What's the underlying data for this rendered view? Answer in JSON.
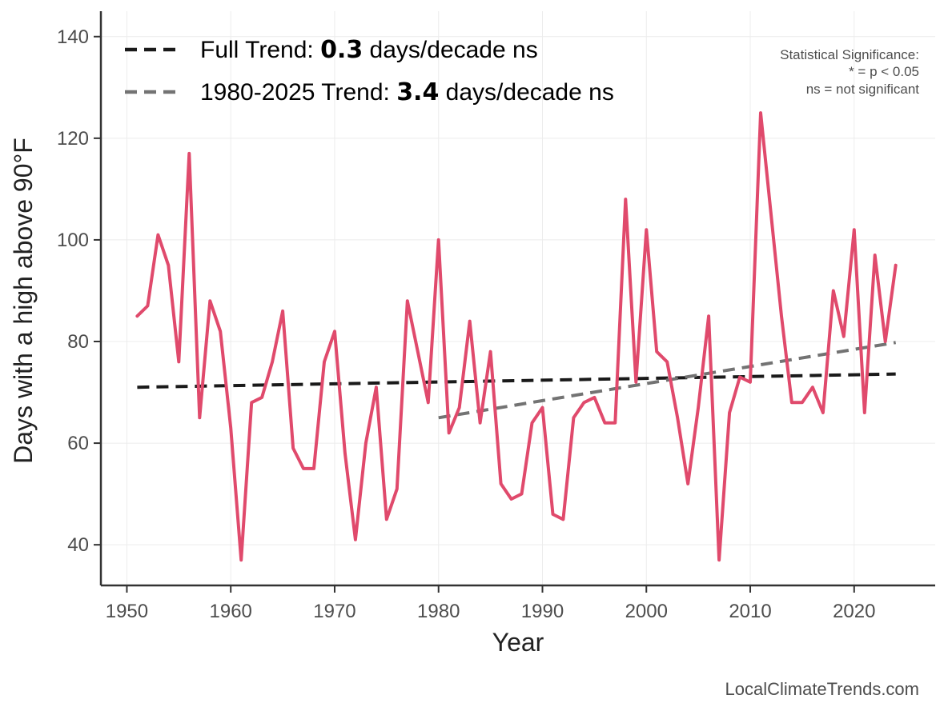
{
  "chart_data": {
    "type": "line",
    "xlabel": "Year",
    "ylabel": "Days with a high above 90°F",
    "xlim": [
      1947.5,
      2027.8
    ],
    "ylim": [
      32,
      145
    ],
    "xticks": [
      1950,
      1960,
      1970,
      1980,
      1990,
      2000,
      2010,
      2020
    ],
    "yticks": [
      40,
      60,
      80,
      100,
      120,
      140
    ],
    "grid": true,
    "series": [
      {
        "name": "Days with a high above 90°F",
        "color": "#e04a6c",
        "x": [
          1951,
          1952,
          1953,
          1954,
          1955,
          1956,
          1957,
          1958,
          1959,
          1960,
          1961,
          1962,
          1963,
          1964,
          1965,
          1966,
          1967,
          1968,
          1969,
          1970,
          1971,
          1972,
          1973,
          1974,
          1975,
          1976,
          1977,
          1978,
          1979,
          1980,
          1981,
          1982,
          1983,
          1984,
          1985,
          1986,
          1987,
          1988,
          1989,
          1990,
          1991,
          1992,
          1993,
          1994,
          1995,
          1996,
          1997,
          1998,
          1999,
          2000,
          2001,
          2002,
          2003,
          2004,
          2005,
          2006,
          2007,
          2008,
          2009,
          2010,
          2011,
          2012,
          2013,
          2014,
          2015,
          2016,
          2017,
          2018,
          2019,
          2020,
          2021,
          2022,
          2023,
          2024
        ],
        "values": [
          85,
          87,
          101,
          95,
          76,
          117,
          65,
          88,
          82,
          63,
          37,
          68,
          69,
          76,
          86,
          59,
          55,
          55,
          76,
          82,
          58,
          41,
          60,
          71,
          45,
          51,
          88,
          78,
          68,
          100,
          62,
          67,
          84,
          64,
          78,
          52,
          49,
          50,
          64,
          67,
          46,
          45,
          65,
          68,
          69,
          64,
          64,
          108,
          72,
          102,
          78,
          76,
          65,
          52,
          67,
          85,
          37,
          66,
          73,
          72,
          125,
          105,
          85,
          68,
          68,
          71,
          66,
          90,
          81,
          102,
          66,
          97,
          80,
          95
        ]
      }
    ],
    "trends": [
      {
        "name": "full",
        "color": "#1a1a1a",
        "x": [
          1951,
          2024
        ],
        "y": [
          71.0,
          73.6
        ],
        "label_prefix": "Full Trend: ",
        "label_value": "0.3",
        "label_suffix": " days/decade ns"
      },
      {
        "name": "recent",
        "color": "#737373",
        "x": [
          1980,
          2024
        ],
        "y": [
          65.0,
          79.8
        ],
        "label_prefix": "1980-2025 Trend: ",
        "label_value": "3.4",
        "label_suffix": " days/decade ns"
      }
    ],
    "significance_note": [
      "Statistical Significance:",
      "* = p < 0.05",
      "ns = not significant"
    ],
    "legend_position": "top-left",
    "credit": "LocalClimateTrends.com"
  }
}
